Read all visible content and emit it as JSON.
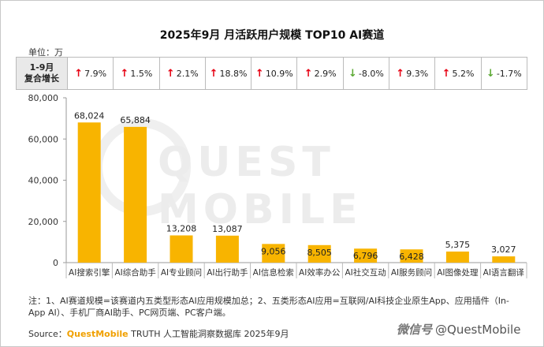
{
  "title": "2025年9月 月活跃用户规模 TOP10 AI赛道",
  "unit_label": "单位：万",
  "growth_header": [
    "1-9月",
    "复合增长"
  ],
  "growth": [
    {
      "value": "7.9%",
      "dir": "up"
    },
    {
      "value": "1.5%",
      "dir": "up"
    },
    {
      "value": "2.1%",
      "dir": "up"
    },
    {
      "value": "18.8%",
      "dir": "up"
    },
    {
      "value": "10.9%",
      "dir": "up"
    },
    {
      "value": "2.9%",
      "dir": "up"
    },
    {
      "value": "-8.0%",
      "dir": "down"
    },
    {
      "value": "9.3%",
      "dir": "up"
    },
    {
      "value": "5.2%",
      "dir": "up"
    },
    {
      "value": "-1.7%",
      "dir": "down"
    }
  ],
  "colors": {
    "bar": "#f8b400",
    "up": "#e60012",
    "down": "#5aa832"
  },
  "chart_data": {
    "type": "bar",
    "title": "2025年9月 月活跃用户规模 TOP10 AI赛道",
    "categories": [
      "AI搜索引擎",
      "AI综合助手",
      "AI专业顾问",
      "AI出行助手",
      "AI信息检索",
      "AI效率办公",
      "AI社交互动",
      "AI服务顾问",
      "AI图像处理",
      "AI语言翻译"
    ],
    "values": [
      68024,
      65884,
      13208,
      13087,
      9056,
      8505,
      6796,
      6428,
      5375,
      3027
    ],
    "value_labels": [
      "68,024",
      "65,884",
      "13,208",
      "13,087",
      "9,056",
      "8,505",
      "6,796",
      "6,428",
      "5,375",
      "3,027"
    ],
    "yticks": [
      "0",
      "20,000",
      "40,000",
      "60,000",
      "80,000"
    ],
    "ylim": [
      0,
      80000
    ],
    "xlabel": "",
    "ylabel": "",
    "grid": false
  },
  "watermark": "QUEST MOBILE",
  "note": "注：1、AI赛道规模=该赛道内五类型形态AI应用规模加总；2、五类形态AI应用=互联网/AI科技企业原生App、应用插件（In-App AI）、手机厂商AI助手、PC网页端、PC客户端。",
  "source_prefix": "Source：",
  "source_brand": "QuestMobile",
  "source_rest": " TRUTH 人工智能洞察数据库 2025年9月",
  "badge_wechat": "微信号",
  "badge_handle": "@QuestMobile"
}
